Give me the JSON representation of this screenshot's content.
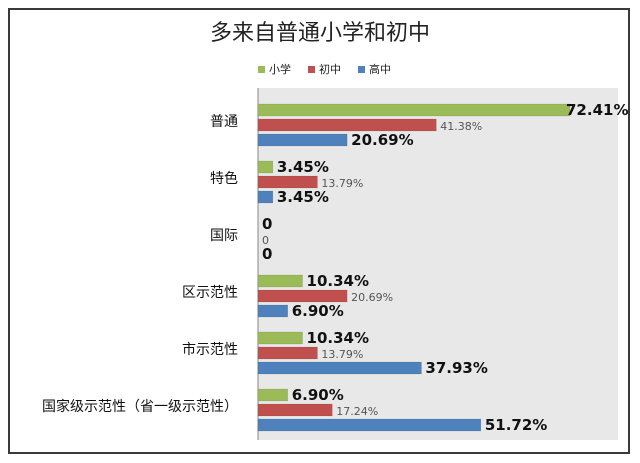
{
  "chart_data": {
    "type": "bar",
    "orientation": "horizontal",
    "title": "多来自普通小学和初中",
    "categories": [
      "普通",
      "特色",
      "国际",
      "区示范性",
      "市示范性",
      "国家级示范性（省一级示范性）"
    ],
    "series": [
      {
        "name": "小学",
        "color": "#9bbb59",
        "values": [
          72.41,
          3.45,
          0,
          10.34,
          10.34,
          6.9
        ],
        "labels": [
          "72.41%",
          "3.45%",
          "0",
          "10.34%",
          "10.34%",
          "6.90%"
        ]
      },
      {
        "name": "初中",
        "color": "#c0504d",
        "values": [
          41.38,
          13.79,
          0,
          20.69,
          13.79,
          17.24
        ],
        "labels": [
          "41.38%",
          "13.79%",
          "0",
          "20.69%",
          "13.79%",
          "17.24%"
        ]
      },
      {
        "name": "高中",
        "color": "#4f81bd",
        "values": [
          20.69,
          3.45,
          0,
          6.9,
          37.93,
          51.72
        ],
        "labels": [
          "20.69%",
          "3.45%",
          "0",
          "6.90%",
          "37.93%",
          "51.72%"
        ]
      }
    ],
    "xlim": [
      0,
      80
    ],
    "legend_position": "top",
    "grid": false
  }
}
